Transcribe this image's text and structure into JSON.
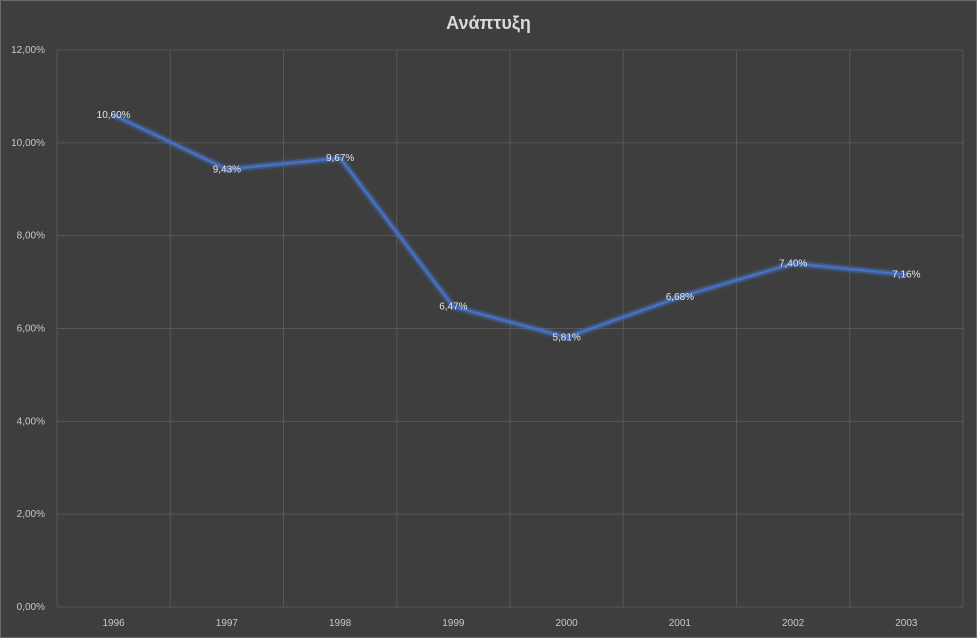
{
  "chart_data": {
    "type": "line",
    "title": "Ανάπτυξη",
    "xlabel": "",
    "ylabel": "",
    "categories": [
      "1996",
      "1997",
      "1998",
      "1999",
      "2000",
      "2001",
      "2002",
      "2003"
    ],
    "series": [
      {
        "values": [
          10.6,
          9.43,
          9.67,
          6.47,
          5.81,
          6.68,
          7.4,
          7.16
        ],
        "labels": [
          "10,60%",
          "9,43%",
          "9,67%",
          "6,47%",
          "5,81%",
          "6,68%",
          "7,40%",
          "7,16%"
        ]
      }
    ],
    "ylim": [
      0,
      12
    ],
    "yticks": [
      "0,00%",
      "2,00%",
      "4,00%",
      "6,00%",
      "8,00%",
      "10,00%",
      "12,00%"
    ],
    "ytick_values": [
      0,
      2,
      4,
      6,
      8,
      10,
      12
    ],
    "grid": true,
    "legend": "none",
    "colors": {
      "line": "#4472c4",
      "glow": "#4f7fe0",
      "background": "#3e3e3e",
      "text": "#d9d9d9"
    }
  }
}
